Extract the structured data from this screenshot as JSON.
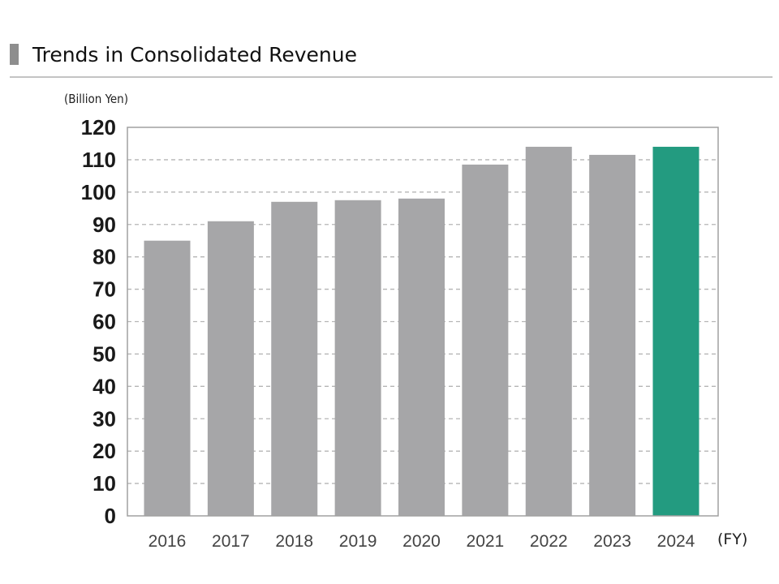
{
  "header": {
    "title": "Trends in Consolidated Revenue"
  },
  "chart_data": {
    "type": "bar",
    "title": "Trends in Consolidated Revenue",
    "ylabel": "(Billion Yen)",
    "xlabel": "(FY)",
    "categories": [
      "2016",
      "2017",
      "2018",
      "2019",
      "2020",
      "2021",
      "2022",
      "2023",
      "2024"
    ],
    "values": [
      85,
      91,
      97,
      97.5,
      98,
      108.5,
      114,
      111.5,
      114
    ],
    "ylim": [
      0,
      120
    ],
    "yticks": [
      0,
      10,
      20,
      30,
      40,
      50,
      60,
      70,
      80,
      90,
      100,
      110,
      120
    ],
    "grid": true,
    "highlight_category": "2024",
    "colors": {
      "bar": "#a6a6a8",
      "highlight": "#239b80",
      "grid": "#b5b5b5",
      "frame": "#a0a0a0"
    }
  }
}
